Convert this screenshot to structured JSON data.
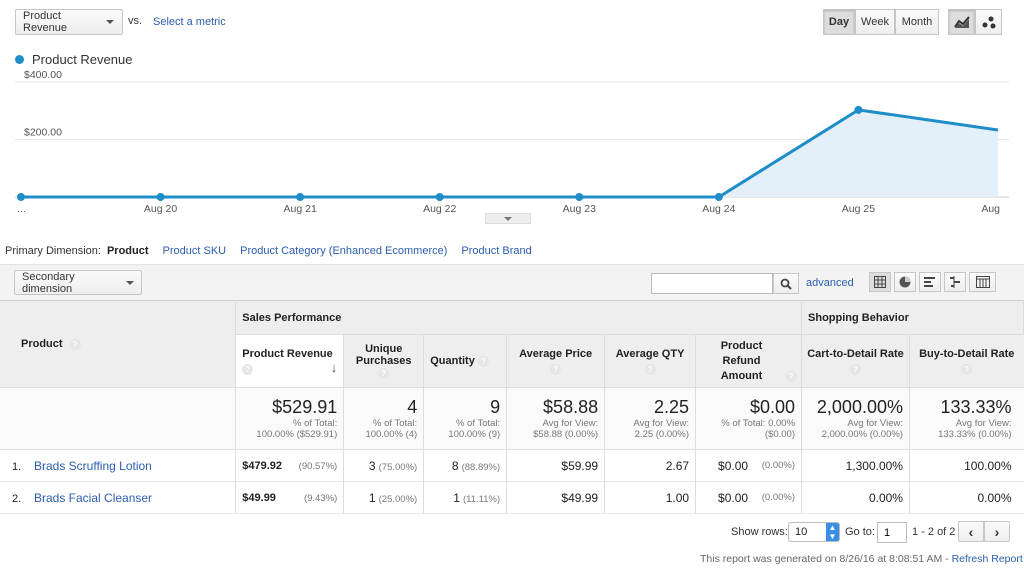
{
  "toolbar": {
    "metric_select": "Product Revenue",
    "vs_label": "vs.",
    "select_metric_link": "Select a metric",
    "periods": [
      "Day",
      "Week",
      "Month"
    ],
    "active_period": "Day",
    "chart_types": [
      "line-chart-icon",
      "motion-chart-icon"
    ]
  },
  "chart_legend": "Product Revenue",
  "chart_data": {
    "type": "area",
    "series": [
      {
        "name": "Product Revenue",
        "color": "#1f8dc7",
        "x": [
          "...",
          "Aug 20",
          "Aug 21",
          "Aug 22",
          "Aug 23",
          "Aug 24",
          "Aug 25",
          "Aug"
        ],
        "values": [
          0,
          0,
          0,
          0,
          0,
          0,
          303,
          233
        ]
      }
    ],
    "ytick_labels": [
      "$400.00",
      "$200.00"
    ],
    "yticks": [
      400,
      200
    ],
    "ylim": [
      0,
      400
    ],
    "grid": true
  },
  "dimensions": {
    "label": "Primary Dimension:",
    "items": [
      "Product",
      "Product SKU",
      "Product Category (Enhanced Ecommerce)",
      "Product Brand"
    ],
    "active": "Product"
  },
  "secondary_dimension": "Secondary dimension",
  "search": {
    "value": "",
    "advanced": "advanced"
  },
  "view_icons": [
    "table-icon",
    "pie-icon",
    "bar-icon",
    "comparison-icon",
    "pivot-icon"
  ],
  "table": {
    "product_header": "Product",
    "group1": "Sales Performance",
    "group2": "Shopping Behavior",
    "columns": [
      "Product Revenue",
      "Unique Purchases",
      "Quantity",
      "Average Price",
      "Average QTY",
      "Product Refund Amount",
      "Cart-to-Detail Rate",
      "Buy-to-Detail Rate"
    ],
    "totals": [
      {
        "value": "$529.91",
        "sub1": "% of Total:",
        "sub2": "100.00% ($529.91)"
      },
      {
        "value": "4",
        "sub1": "% of Total:",
        "sub2": "100.00% (4)"
      },
      {
        "value": "9",
        "sub1": "% of Total:",
        "sub2": "100.00% (9)"
      },
      {
        "value": "$58.88",
        "sub1": "Avg for View:",
        "sub2": "$58.88 (0.00%)"
      },
      {
        "value": "2.25",
        "sub1": "Avg for View:",
        "sub2": "2.25 (0.00%)"
      },
      {
        "value": "$0.00",
        "sub1": "% of Total: 0.00%",
        "sub2": "($0.00)"
      },
      {
        "value": "2,000.00%",
        "sub1": "Avg for View:",
        "sub2": "2,000.00% (0.00%)"
      },
      {
        "value": "133.33%",
        "sub1": "Avg for View:",
        "sub2": "133.33% (0.00%)"
      }
    ],
    "rows": [
      {
        "index": "1.",
        "product": "Brads Scruffing Lotion",
        "revenue": "$479.92",
        "revenue_pct": "(90.57%)",
        "purchases": "3",
        "purchases_pct": "(75.00%)",
        "quantity": "8",
        "quantity_pct": "(88.89%)",
        "avg_price": "$59.99",
        "avg_qty": "2.67",
        "refund": "$0.00",
        "refund_pct": "(0.00%)",
        "cart_detail": "1,300.00%",
        "buy_detail": "100.00%"
      },
      {
        "index": "2.",
        "product": "Brads Facial Cleanser",
        "revenue": "$49.99",
        "revenue_pct": "(9.43%)",
        "purchases": "1",
        "purchases_pct": "(25.00%)",
        "quantity": "1",
        "quantity_pct": "(11.11%)",
        "avg_price": "$49.99",
        "avg_qty": "1.00",
        "refund": "$0.00",
        "refund_pct": "(0.00%)",
        "cart_detail": "0.00%",
        "buy_detail": "0.00%"
      }
    ]
  },
  "pagination": {
    "show_rows_label": "Show rows:",
    "show_rows": "10",
    "goto_label": "Go to:",
    "goto": "1",
    "range": "1 - 2 of 2"
  },
  "footer": {
    "generated": "This report was generated on 8/26/16 at 8:08:51 AM -",
    "refresh": "Refresh Report"
  }
}
